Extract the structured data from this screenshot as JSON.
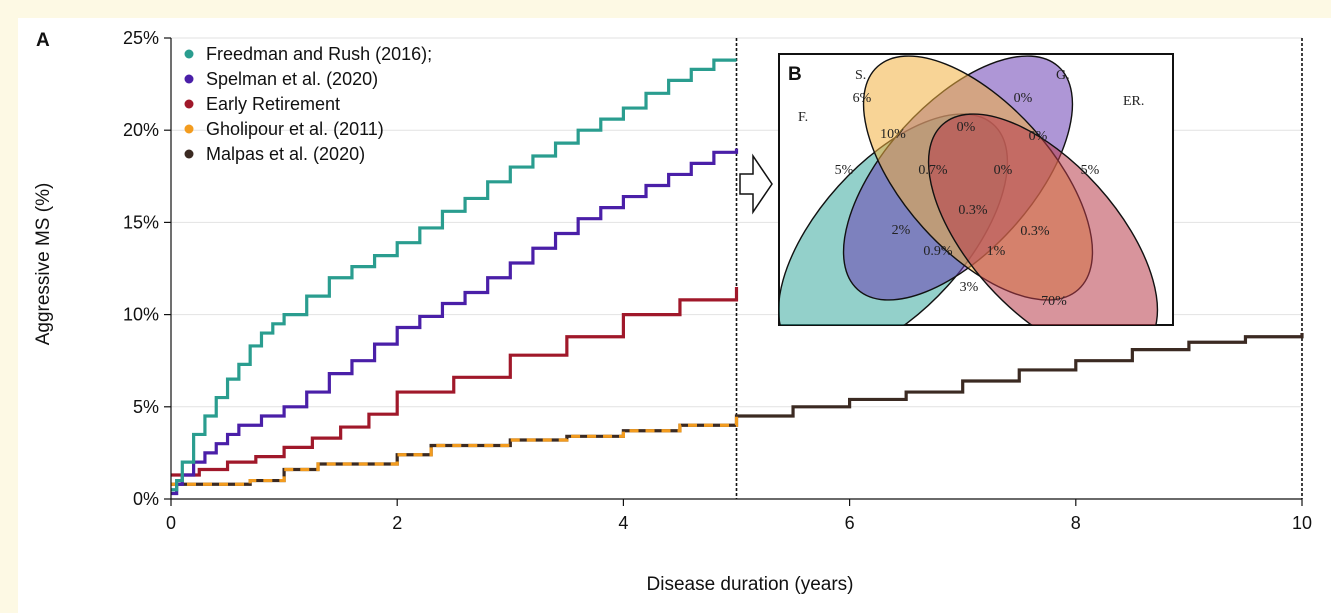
{
  "panels": {
    "a": "A",
    "b": "B"
  },
  "chart_data": [
    {
      "type": "line",
      "step": true,
      "title": "",
      "xlabel": "Disease duration (years)",
      "ylabel": "Aggressive MS (%)",
      "xlim": [
        0,
        10
      ],
      "ylim": [
        0,
        25
      ],
      "x_ticks": [
        0,
        2,
        4,
        6,
        8,
        10
      ],
      "y_ticks": [
        "0%",
        "5%",
        "10%",
        "15%",
        "20%",
        "25%"
      ],
      "grid": "horizontal",
      "legend_position": "top-left",
      "reference_lines_x": [
        5,
        10
      ],
      "series": [
        {
          "name": "Freedman and Rush (2016);",
          "color": "#2a9d8f",
          "x": [
            0,
            0.05,
            0.1,
            0.2,
            0.3,
            0.4,
            0.5,
            0.6,
            0.7,
            0.8,
            0.9,
            1.0,
            1.2,
            1.4,
            1.6,
            1.8,
            2.0,
            2.2,
            2.4,
            2.6,
            2.8,
            3.0,
            3.2,
            3.4,
            3.6,
            3.8,
            4.0,
            4.2,
            4.4,
            4.6,
            4.8,
            5.0
          ],
          "y": [
            0.5,
            1.0,
            2.0,
            3.5,
            4.5,
            5.5,
            6.5,
            7.3,
            8.3,
            9.0,
            9.5,
            10.0,
            11.0,
            12.0,
            12.6,
            13.2,
            13.9,
            14.7,
            15.6,
            16.3,
            17.2,
            18.0,
            18.6,
            19.3,
            20.0,
            20.6,
            21.2,
            22.0,
            22.7,
            23.3,
            23.8,
            23.8
          ]
        },
        {
          "name": "Spelman et al. (2020)",
          "color": "#4a1fa8",
          "x": [
            0,
            0.05,
            0.1,
            0.2,
            0.3,
            0.4,
            0.5,
            0.6,
            0.8,
            1.0,
            1.2,
            1.4,
            1.6,
            1.8,
            2.0,
            2.2,
            2.4,
            2.6,
            2.8,
            3.0,
            3.2,
            3.4,
            3.6,
            3.8,
            4.0,
            4.2,
            4.4,
            4.6,
            4.8,
            5.0
          ],
          "y": [
            0.3,
            0.8,
            1.3,
            2.0,
            2.5,
            3.0,
            3.5,
            4.0,
            4.5,
            5.0,
            5.8,
            6.8,
            7.5,
            8.4,
            9.3,
            9.9,
            10.6,
            11.2,
            12.0,
            12.8,
            13.6,
            14.4,
            15.2,
            15.8,
            16.4,
            17.0,
            17.6,
            18.2,
            18.8,
            19.0
          ]
        },
        {
          "name": "Early Retirement",
          "color": "#a0182a",
          "x": [
            0,
            0.25,
            0.5,
            0.75,
            1.0,
            1.25,
            1.5,
            1.75,
            2.0,
            2.5,
            3.0,
            3.5,
            4.0,
            4.5,
            5.0
          ],
          "y": [
            1.3,
            1.6,
            2.0,
            2.3,
            2.8,
            3.3,
            3.9,
            4.6,
            5.8,
            6.6,
            7.8,
            8.8,
            10.0,
            10.8,
            11.5
          ]
        },
        {
          "name": "Gholipour et al. (2011)",
          "color": "#f39c1f",
          "x": [
            0,
            0.7,
            1.0,
            1.3,
            2.0,
            2.3,
            3.0,
            3.5,
            4.0,
            4.5,
            5.0
          ],
          "y": [
            0.8,
            1.0,
            1.6,
            1.9,
            2.4,
            2.9,
            3.2,
            3.4,
            3.7,
            4.0,
            4.5
          ]
        },
        {
          "name": "Malpas et al. (2020)",
          "color": "#3b2a22",
          "x": [
            0,
            0.7,
            1.0,
            1.3,
            2.0,
            2.3,
            3.0,
            3.5,
            4.0,
            4.5,
            5.0,
            5.5,
            6.0,
            6.5,
            7.0,
            7.5,
            8.0,
            8.5,
            9.0,
            9.5,
            10.0
          ],
          "y": [
            0.8,
            1.0,
            1.6,
            1.9,
            2.4,
            2.9,
            3.2,
            3.4,
            3.7,
            4.0,
            4.5,
            5.0,
            5.4,
            5.8,
            6.4,
            7.0,
            7.5,
            8.1,
            8.5,
            8.8,
            9.0
          ]
        }
      ]
    },
    {
      "type": "venn",
      "sets": [
        {
          "label": "F.",
          "color": "#3aa99f"
        },
        {
          "label": "S.",
          "color": "#6b3fb5"
        },
        {
          "label": "G.",
          "color": "#f2b040"
        },
        {
          "label": "ER.",
          "color": "#b83c4a"
        }
      ],
      "regions": [
        {
          "sets": "S",
          "value": "6%"
        },
        {
          "sets": "G",
          "value": "0%"
        },
        {
          "sets": "F",
          "value": "5%"
        },
        {
          "sets": "ER",
          "value": "5%"
        },
        {
          "sets": "F+S",
          "value": "10%"
        },
        {
          "sets": "S+G",
          "value": "0%"
        },
        {
          "sets": "G+ER",
          "value": "0%"
        },
        {
          "sets": "F+S+G",
          "value": "0.7%"
        },
        {
          "sets": "S+G+ER",
          "value": "0%"
        },
        {
          "sets": "F+S+G+ER",
          "value": "0.3%"
        },
        {
          "sets": "F+G",
          "value": "2%"
        },
        {
          "sets": "S+ER",
          "value": "0.3%"
        },
        {
          "sets": "F+G+ER",
          "value": "0.9%"
        },
        {
          "sets": "F+S+ER",
          "value": "1%"
        },
        {
          "sets": "F+ER",
          "value": "3%"
        },
        {
          "sets": "none",
          "value": "70%"
        }
      ]
    }
  ]
}
